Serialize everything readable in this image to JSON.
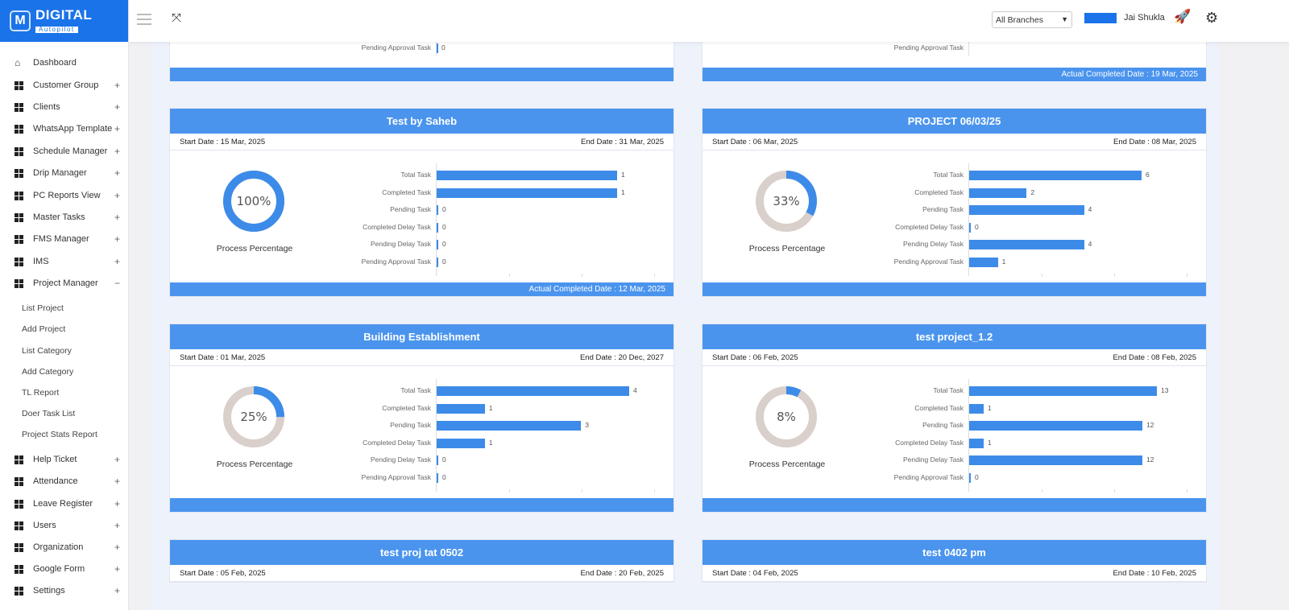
{
  "brand": {
    "name": "DIGITAL",
    "tagline": "Autopilot"
  },
  "header": {
    "branch_select": "All Branches",
    "user_name": "Jai Shukla"
  },
  "sidebar": {
    "items": [
      {
        "label": "Dashboard",
        "icon": "home-icon"
      },
      {
        "label": "Customer Group",
        "expand": "+"
      },
      {
        "label": "Clients",
        "expand": "+"
      },
      {
        "label": "WhatsApp Template",
        "expand": "+"
      },
      {
        "label": "Schedule Manager",
        "expand": "+"
      },
      {
        "label": "Drip Manager",
        "expand": "+"
      },
      {
        "label": "PC Reports View",
        "expand": "+"
      },
      {
        "label": "Master Tasks",
        "expand": "+"
      },
      {
        "label": "FMS Manager",
        "expand": "+"
      },
      {
        "label": "IMS",
        "expand": "+"
      },
      {
        "label": "Project Manager",
        "expand": "−"
      },
      {
        "label": "Help Ticket",
        "expand": "+"
      },
      {
        "label": "Attendance",
        "expand": "+"
      },
      {
        "label": "Leave Register",
        "expand": "+"
      },
      {
        "label": "Users",
        "expand": "+"
      },
      {
        "label": "Organization",
        "expand": "+"
      },
      {
        "label": "Google Form",
        "expand": "+"
      },
      {
        "label": "Settings",
        "expand": "+"
      }
    ],
    "subitems": [
      "List Project",
      "Add Project",
      "List Category",
      "Add Category",
      "TL Report",
      "Doer Task List",
      "Project Stats Report"
    ]
  },
  "labels": {
    "process": "Process Percentage",
    "start_prefix": "Start Date : ",
    "end_prefix": "End Date : ",
    "actual_prefix": "Actual Completed Date : "
  },
  "task_labels": [
    "Total Task",
    "Completed Task",
    "Pending Task",
    "Completed Delay Task",
    "Pending Delay Task",
    "Pending Approval Task"
  ],
  "partial_top": [
    {
      "last_label": "Pending Approval Task",
      "last_value": 0,
      "footer": ""
    },
    {
      "last_label": "Pending Approval Task",
      "footer": "Actual Completed Date : 19 Mar, 2025"
    }
  ],
  "colors": {
    "accent": "#4a94ee",
    "bar": "#3d8be8",
    "donut_rest": "#d9cfcb"
  },
  "projects": [
    {
      "title": "Test by Saheb",
      "start": "Start Date : 15 Mar, 2025",
      "end": "End Date : 31 Mar, 2025",
      "percent": "100%",
      "percent_value": 100,
      "values": [
        1,
        1,
        0,
        0,
        0,
        0
      ],
      "footer": "Actual Completed Date : 12 Mar, 2025"
    },
    {
      "title": "PROJECT 06/03/25",
      "start": "Start Date : 06 Mar, 2025",
      "end": "End Date : 08 Mar, 2025",
      "percent": "33%",
      "percent_value": 33,
      "values": [
        6,
        2,
        4,
        0,
        4,
        1
      ],
      "footer": ""
    },
    {
      "title": "Building Establishment",
      "start": "Start Date : 01 Mar, 2025",
      "end": "End Date : 20 Dec, 2027",
      "percent": "25%",
      "percent_value": 25,
      "values": [
        4,
        1,
        3,
        1,
        0,
        0
      ],
      "footer": ""
    },
    {
      "title": "test project_1.2",
      "start": "Start Date : 06 Feb, 2025",
      "end": "End Date : 08 Feb, 2025",
      "percent": "8%",
      "percent_value": 8,
      "values": [
        13,
        1,
        12,
        1,
        12,
        0
      ],
      "footer": ""
    },
    {
      "title": "test proj tat 0502",
      "start": "Start Date : 05 Feb, 2025",
      "end": "End Date : 20 Feb, 2025"
    },
    {
      "title": "test 0402 pm",
      "start": "Start Date : 04 Feb, 2025",
      "end": "End Date : 10 Feb, 2025"
    }
  ]
}
